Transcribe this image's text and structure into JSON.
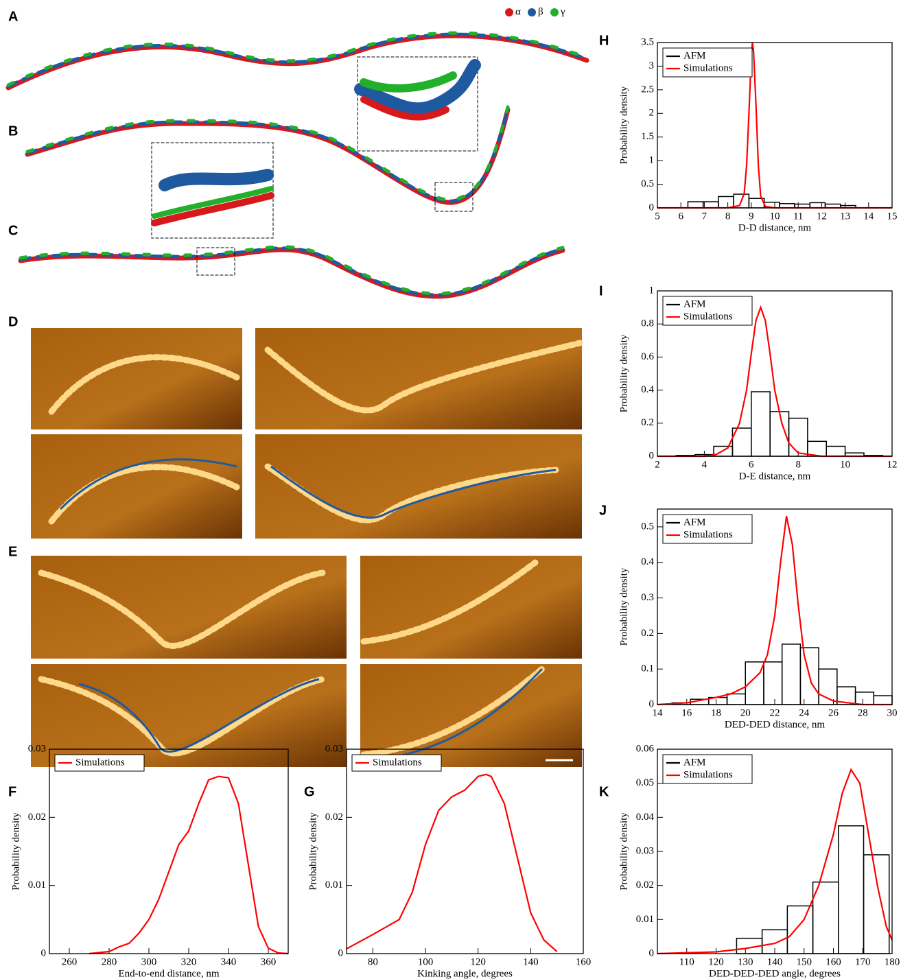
{
  "figure": {
    "panel_labels": [
      "A",
      "B",
      "C",
      "D",
      "E"
    ],
    "molecule_legend": [
      {
        "name": "α",
        "color": "#d7191c"
      },
      {
        "name": "β",
        "color": "#1f5aa0"
      },
      {
        "name": "γ",
        "color": "#22b02a"
      }
    ]
  },
  "chart_data": [
    {
      "panel": "F",
      "type": "line",
      "xlabel": "End-to-end distance, nm",
      "ylabel": "Probability density",
      "xlim": [
        250,
        370
      ],
      "ylim": [
        0,
        0.03
      ],
      "xticks": [
        260,
        280,
        300,
        320,
        340,
        360
      ],
      "yticks": [
        0,
        0.01,
        0.02,
        0.03
      ],
      "series": [
        {
          "name": "Simulations",
          "color": "#ff0000",
          "x": [
            270,
            280,
            285,
            290,
            295,
            300,
            305,
            310,
            315,
            320,
            325,
            330,
            335,
            340,
            345,
            350,
            355,
            360,
            365,
            370
          ],
          "values": [
            0,
            0.0003,
            0.001,
            0.0015,
            0.003,
            0.005,
            0.008,
            0.012,
            0.016,
            0.018,
            0.022,
            0.0255,
            0.026,
            0.0258,
            0.022,
            0.013,
            0.004,
            0.0008,
            0.0001,
            0
          ]
        }
      ]
    },
    {
      "panel": "G",
      "type": "line",
      "xlabel": "Kinking angle, degrees",
      "ylabel": "Probability density",
      "xlim": [
        70,
        160
      ],
      "ylim": [
        0,
        0.03
      ],
      "xticks": [
        80,
        100,
        120,
        140,
        160
      ],
      "yticks": [
        0,
        0.01,
        0.02,
        0.03
      ],
      "series": [
        {
          "name": "Simulations",
          "color": "#ff0000",
          "x": [
            70,
            80,
            90,
            95,
            100,
            105,
            110,
            115,
            120,
            123,
            125,
            130,
            135,
            140,
            145,
            150
          ],
          "values": [
            0.0007,
            0.0028,
            0.005,
            0.009,
            0.016,
            0.021,
            0.023,
            0.024,
            0.026,
            0.0263,
            0.026,
            0.022,
            0.014,
            0.006,
            0.002,
            0.0003
          ]
        }
      ]
    },
    {
      "panel": "H",
      "type": "histogram",
      "xlabel": "D-D distance, nm",
      "ylabel": "Probability density",
      "xlim": [
        5,
        15
      ],
      "ylim": [
        0,
        3.5
      ],
      "xticks": [
        5,
        6,
        7,
        8,
        9,
        10,
        11,
        12,
        13,
        14,
        15
      ],
      "yticks": [
        0,
        0.5,
        1,
        1.5,
        2,
        2.5,
        3,
        3.5
      ],
      "series": [
        {
          "name": "AFM",
          "color": "#000000",
          "bins": [
            6.3,
            6.95,
            7.6,
            8.25,
            8.9,
            9.55,
            10.2,
            10.85,
            11.5,
            12.15,
            12.8,
            13.45
          ],
          "values": [
            0.13,
            0.13,
            0.24,
            0.29,
            0.2,
            0.12,
            0.09,
            0.08,
            0.11,
            0.08,
            0.05
          ]
        },
        {
          "name": "Simulations",
          "color": "#ff0000",
          "x": [
            5,
            8,
            8.5,
            8.7,
            8.8,
            8.9,
            9.0,
            9.05,
            9.1,
            9.2,
            9.3,
            9.4,
            9.6,
            10,
            15
          ],
          "values": [
            0,
            0,
            0.05,
            0.3,
            0.9,
            2.0,
            3.2,
            3.5,
            3.3,
            2.2,
            0.9,
            0.25,
            0.03,
            0,
            0
          ]
        }
      ]
    },
    {
      "panel": "I",
      "type": "histogram",
      "xlabel": "D-E distance, nm",
      "ylabel": "Probability density",
      "xlim": [
        2,
        12
      ],
      "ylim": [
        0,
        1
      ],
      "xticks": [
        2,
        4,
        6,
        8,
        10,
        12
      ],
      "yticks": [
        0,
        0.2,
        0.4,
        0.6,
        0.8,
        1
      ],
      "series": [
        {
          "name": "AFM",
          "color": "#000000",
          "bins": [
            2.8,
            3.6,
            4.4,
            5.2,
            6.0,
            6.8,
            7.6,
            8.4,
            9.2,
            10.0,
            10.8,
            11.6
          ],
          "values": [
            0.005,
            0.01,
            0.06,
            0.17,
            0.39,
            0.27,
            0.23,
            0.09,
            0.06,
            0.02,
            0.005
          ]
        },
        {
          "name": "Simulations",
          "color": "#ff0000",
          "x": [
            2,
            4,
            4.5,
            5,
            5.5,
            5.8,
            6,
            6.2,
            6.4,
            6.6,
            6.8,
            7,
            7.3,
            7.6,
            8,
            9,
            12
          ],
          "values": [
            0,
            0,
            0.01,
            0.05,
            0.2,
            0.4,
            0.62,
            0.82,
            0.9,
            0.82,
            0.62,
            0.4,
            0.2,
            0.08,
            0.02,
            0,
            0
          ]
        }
      ]
    },
    {
      "panel": "J",
      "type": "histogram",
      "xlabel": "DED-DED distance, nm",
      "ylabel": "Probability density",
      "xlim": [
        14,
        30
      ],
      "ylim": [
        0,
        0.55
      ],
      "xticks": [
        14,
        16,
        18,
        20,
        22,
        24,
        26,
        28,
        30
      ],
      "yticks": [
        0,
        0.1,
        0.2,
        0.3,
        0.4,
        0.5
      ],
      "series": [
        {
          "name": "AFM",
          "color": "#000000",
          "bins": [
            15,
            16.25,
            17.5,
            18.75,
            20,
            21.25,
            22.5,
            23.75,
            25,
            26.25,
            27.5,
            28.75,
            30
          ],
          "values": [
            0.005,
            0.015,
            0.02,
            0.03,
            0.12,
            0.12,
            0.17,
            0.16,
            0.1,
            0.05,
            0.035,
            0.025
          ]
        },
        {
          "name": "Simulations",
          "color": "#ff0000",
          "x": [
            14,
            16,
            18,
            19,
            20,
            21,
            21.5,
            22,
            22.4,
            22.8,
            23.2,
            23.6,
            24,
            24.5,
            25,
            26,
            28,
            30
          ],
          "values": [
            0,
            0.005,
            0.02,
            0.03,
            0.05,
            0.09,
            0.14,
            0.25,
            0.4,
            0.53,
            0.45,
            0.28,
            0.14,
            0.06,
            0.03,
            0.01,
            0,
            0
          ]
        }
      ]
    },
    {
      "panel": "K",
      "type": "histogram",
      "xlabel": "DED-DED-DED angle, degrees",
      "ylabel": "Probability density",
      "xlim": [
        100,
        180
      ],
      "ylim": [
        0,
        0.06
      ],
      "xticks": [
        110,
        120,
        130,
        140,
        150,
        160,
        170,
        180
      ],
      "yticks": [
        0,
        0.01,
        0.02,
        0.03,
        0.04,
        0.05,
        0.06
      ],
      "series": [
        {
          "name": "AFM",
          "color": "#000000",
          "bins": [
            127,
            135.7,
            144.3,
            153,
            161.7,
            170.3,
            179
          ],
          "values": [
            0.0045,
            0.007,
            0.014,
            0.021,
            0.0375,
            0.029
          ]
        },
        {
          "name": "Simulations",
          "color": "#ff0000",
          "x": [
            100,
            120,
            130,
            140,
            145,
            150,
            155,
            160,
            163,
            166,
            169,
            172,
            175,
            178,
            180
          ],
          "values": [
            0,
            0.0005,
            0.0015,
            0.003,
            0.005,
            0.01,
            0.02,
            0.035,
            0.047,
            0.054,
            0.05,
            0.035,
            0.02,
            0.008,
            0.004
          ]
        }
      ]
    }
  ]
}
